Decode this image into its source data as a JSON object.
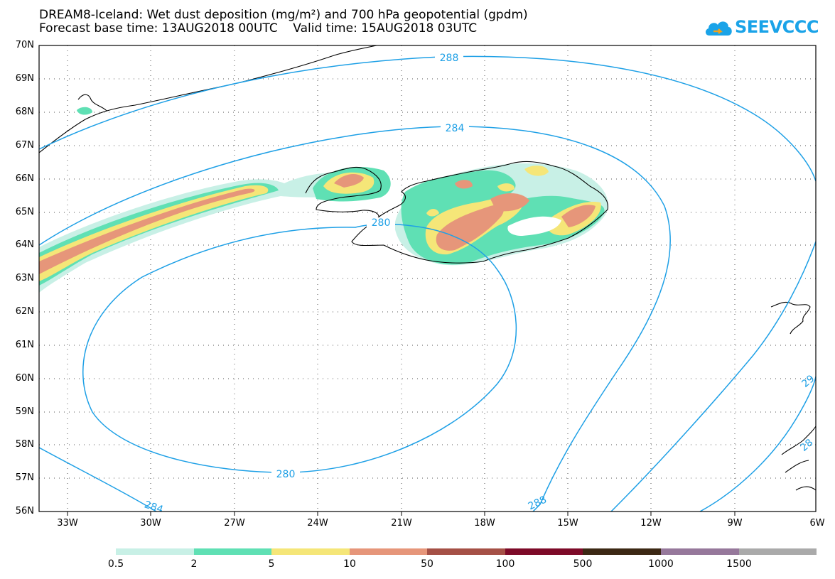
{
  "header": {
    "title_line1": "DREAM8-Iceland: Wet dust deposition (mg/m²) and 700 hPa geopotential (gpdm)",
    "title_line2": "Forecast base time: 13AUG2018 00UTC    Valid time: 15AUG2018 03UTC",
    "logo_text": "SEEVCCC",
    "logo_icon": "cloud-icon"
  },
  "map": {
    "projection": "lat-lon",
    "lat_range": [
      56,
      70
    ],
    "lon_range": [
      -34.2,
      -6
    ],
    "lat_labels": [
      "70N",
      "69N",
      "68N",
      "67N",
      "66N",
      "65N",
      "64N",
      "63N",
      "62N",
      "61N",
      "60N",
      "59N",
      "58N",
      "57N",
      "56N"
    ],
    "lon_labels": [
      "33W",
      "30W",
      "27W",
      "24W",
      "21W",
      "18W",
      "15W",
      "12W",
      "9W",
      "6W"
    ],
    "grid": "dotted",
    "contour_color": "#1ea0e6",
    "contour_labels": [
      "288",
      "284",
      "280",
      "280",
      "284",
      "288",
      "28",
      "29"
    ]
  },
  "legend": {
    "labels": [
      "0.5",
      "2",
      "5",
      "10",
      "50",
      "100",
      "500",
      "1000",
      "1500"
    ],
    "colors": [
      "#c8f0e6",
      "#5fe0b4",
      "#f5e678",
      "#e6967a",
      "#a55046",
      "#7d0a28",
      "#3c2814",
      "#96789b",
      "#aaaaaa"
    ]
  }
}
